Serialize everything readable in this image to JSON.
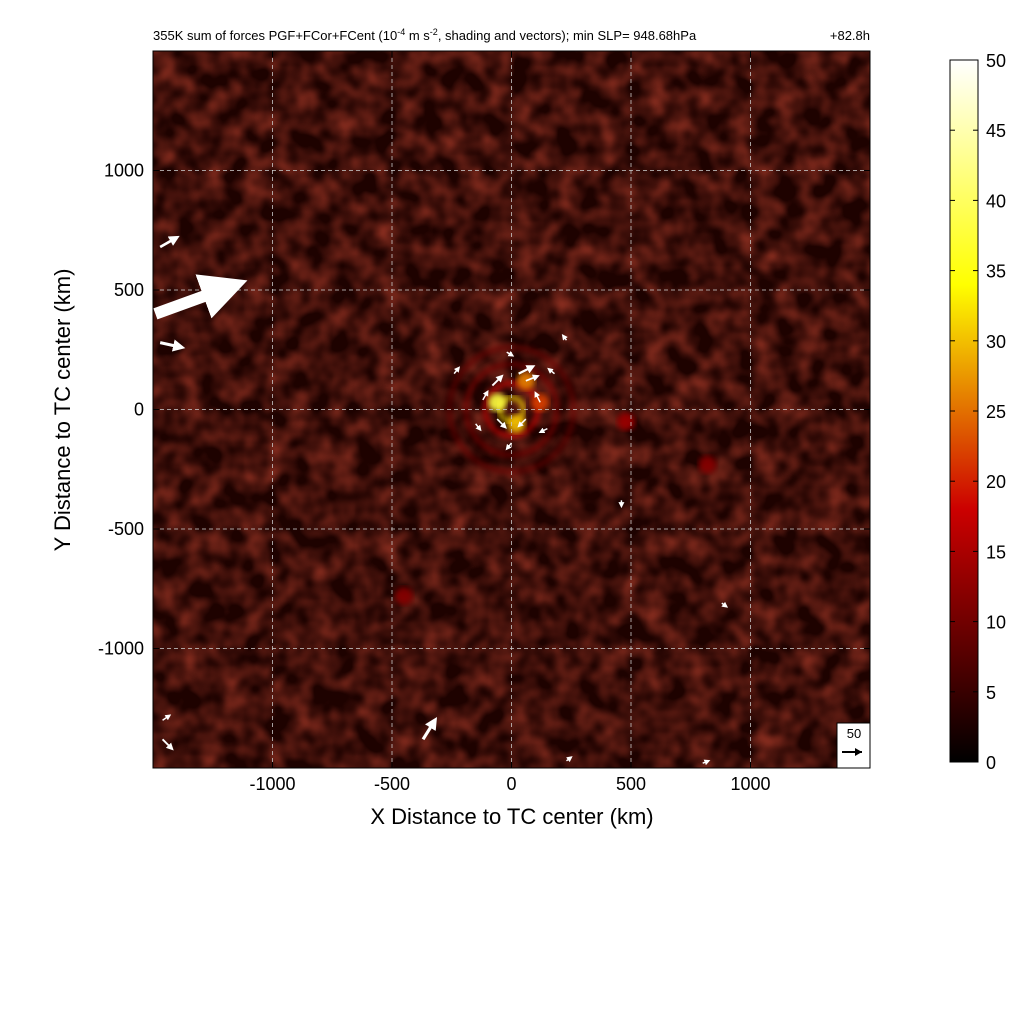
{
  "chart_data": {
    "type": "heatmap",
    "title_prefix": "355K sum of forces PGF+FCor+FCent (10",
    "title_exp1": "-4",
    "title_mid": " m s",
    "title_exp2": "-2",
    "title_suffix": ", shading and vectors); min SLP= 948.68hPa",
    "time_label": "+82.8h",
    "xlabel": "X Distance to TC center (km)",
    "ylabel": "Y Distance to TC center (km)",
    "xlim": [
      -1500,
      1500
    ],
    "ylim": [
      -1500,
      1500
    ],
    "x_ticks": [
      -1000,
      -500,
      0,
      500,
      1000
    ],
    "x_tick_labels": [
      "-1000",
      "-500",
      "0",
      "500",
      "1000"
    ],
    "y_ticks": [
      -1000,
      -500,
      0,
      500,
      1000
    ],
    "y_tick_labels": [
      "-1000",
      "-500",
      "0",
      "500",
      "1000"
    ],
    "grid": true,
    "colorbar": {
      "min": 0,
      "max": 50,
      "ticks": [
        0,
        5,
        10,
        15,
        20,
        25,
        30,
        35,
        40,
        45,
        50
      ],
      "tick_labels": [
        "0",
        "5",
        "10",
        "15",
        "20",
        "25",
        "30",
        "35",
        "40",
        "45",
        "50"
      ],
      "colormap": "hot"
    },
    "reference_vector": {
      "label": "50",
      "magnitude": 50
    },
    "rings": [
      {
        "radius": 50,
        "value": 32
      },
      {
        "radius": 110,
        "value": 18
      },
      {
        "radius": 190,
        "value": 11
      },
      {
        "radius": 260,
        "value": 9
      }
    ],
    "hot_spots": [
      {
        "x": -60,
        "y": 30,
        "value": 38
      },
      {
        "x": 20,
        "y": -60,
        "value": 30
      },
      {
        "x": 60,
        "y": 120,
        "value": 26
      },
      {
        "x": 120,
        "y": 30,
        "value": 22
      },
      {
        "x": 480,
        "y": -50,
        "value": 14
      },
      {
        "x": -450,
        "y": -780,
        "value": 12
      },
      {
        "x": 820,
        "y": -230,
        "value": 12
      }
    ],
    "vectors": [
      {
        "x": -1490,
        "y": 400,
        "u": 330,
        "v": 120
      },
      {
        "x": -1470,
        "y": 680,
        "u": 70,
        "v": 40
      },
      {
        "x": -1470,
        "y": 280,
        "u": 90,
        "v": -20
      },
      {
        "x": -370,
        "y": -1380,
        "u": 50,
        "v": 80
      },
      {
        "x": -1460,
        "y": -1380,
        "u": 40,
        "v": -40
      },
      {
        "x": -1460,
        "y": -1300,
        "u": 30,
        "v": 20
      },
      {
        "x": -80,
        "y": 100,
        "u": 40,
        "v": 40
      },
      {
        "x": 30,
        "y": 150,
        "u": 60,
        "v": 30
      },
      {
        "x": 60,
        "y": 120,
        "u": 50,
        "v": 20
      },
      {
        "x": -60,
        "y": -40,
        "u": 35,
        "v": -35
      },
      {
        "x": 60,
        "y": -40,
        "u": -30,
        "v": -30
      },
      {
        "x": 120,
        "y": 30,
        "u": -20,
        "v": 40
      },
      {
        "x": -120,
        "y": 40,
        "u": 20,
        "v": 35
      },
      {
        "x": -20,
        "y": 240,
        "u": 25,
        "v": -15
      },
      {
        "x": 180,
        "y": 150,
        "u": -25,
        "v": 20
      },
      {
        "x": 150,
        "y": -80,
        "u": -30,
        "v": -15
      },
      {
        "x": 0,
        "y": -140,
        "u": -20,
        "v": -25
      },
      {
        "x": -150,
        "y": -60,
        "u": 20,
        "v": -25
      },
      {
        "x": -240,
        "y": 150,
        "u": 20,
        "v": 25
      },
      {
        "x": 230,
        "y": 290,
        "u": -15,
        "v": 20
      },
      {
        "x": 460,
        "y": -380,
        "u": 0,
        "v": -25
      },
      {
        "x": 880,
        "y": -810,
        "u": 20,
        "v": -15
      },
      {
        "x": 800,
        "y": -1480,
        "u": 25,
        "v": 10
      },
      {
        "x": 230,
        "y": -1470,
        "u": 20,
        "v": 15
      }
    ]
  }
}
